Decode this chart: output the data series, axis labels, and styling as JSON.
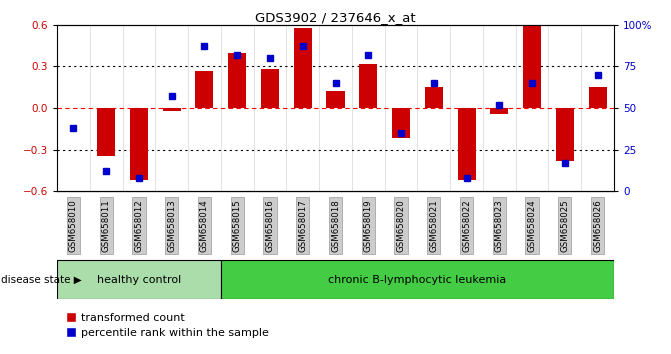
{
  "title": "GDS3902 / 237646_x_at",
  "samples": [
    "GSM658010",
    "GSM658011",
    "GSM658012",
    "GSM658013",
    "GSM658014",
    "GSM658015",
    "GSM658016",
    "GSM658017",
    "GSM658018",
    "GSM658019",
    "GSM658020",
    "GSM658021",
    "GSM658022",
    "GSM658023",
    "GSM658024",
    "GSM658025",
    "GSM658026"
  ],
  "bar_values": [
    0.0,
    -0.35,
    -0.52,
    -0.02,
    0.27,
    0.4,
    0.28,
    0.58,
    0.12,
    0.32,
    -0.22,
    0.15,
    -0.52,
    -0.04,
    0.6,
    -0.38,
    0.15
  ],
  "percentile_values": [
    38,
    12,
    8,
    57,
    87,
    82,
    80,
    87,
    65,
    82,
    35,
    65,
    8,
    52,
    65,
    17,
    70
  ],
  "bar_color": "#cc0000",
  "dot_color": "#0000cc",
  "ylim": [
    -0.6,
    0.6
  ],
  "yticks_left": [
    -0.6,
    -0.3,
    0.0,
    0.3,
    0.6
  ],
  "yticks_right": [
    0,
    25,
    50,
    75,
    100
  ],
  "ytick_labels_right": [
    "0",
    "25",
    "50",
    "75",
    "100%"
  ],
  "healthy_label": "healthy control",
  "leukemia_label": "chronic B-lymphocytic leukemia",
  "disease_state_label": "disease state",
  "legend_bar_label": "transformed count",
  "legend_dot_label": "percentile rank within the sample",
  "healthy_bg_color": "#aaddaa",
  "leukemia_bg_color": "#44cc44",
  "xticklabel_bg_color": "#cccccc",
  "n_healthy": 5,
  "n_leukemia": 12
}
